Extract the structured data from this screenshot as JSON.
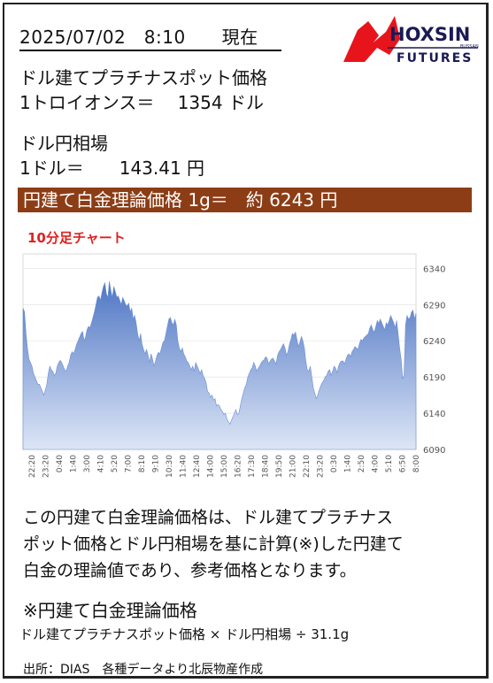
{
  "header": {
    "datetime": "2025/07/02　8:10　　現在"
  },
  "logo": {
    "name": "HOXSIN",
    "sub": "FUTURES",
    "small": "BUSSAN"
  },
  "platinum": {
    "title": "ドル建てプラチナスポット価格",
    "value_line": "1トロイオンス＝　 1354 ドル"
  },
  "fx": {
    "title": "ドル円相場",
    "value_line": "1ドル＝　　143.41 円"
  },
  "theory": {
    "line": "円建て白金理論価格 1g＝　約 6243 円"
  },
  "chart_label": "10分足チャート",
  "chart_data": {
    "type": "area",
    "y_ticks": [
      6090,
      6140,
      6190,
      6240,
      6290,
      6340
    ],
    "ylim": [
      6090,
      6360
    ],
    "x_tick_labels": [
      "22:20",
      "23:20",
      "0:40",
      "1:40",
      "3:00",
      "4:10",
      "5:20",
      "7:00",
      "8:10",
      "9:10",
      "10:30",
      "11:40",
      "12:40",
      "14:00",
      "15:00",
      "16:20",
      "17:30",
      "18:40",
      "19:50",
      "21:00",
      "22:10",
      "23:20",
      "0:30",
      "1:40",
      "2:50",
      "4:00",
      "5:10",
      "6:50",
      "8:00"
    ],
    "values": [
      6285,
      6280,
      6250,
      6230,
      6215,
      6210,
      6205,
      6195,
      6190,
      6185,
      6180,
      6180,
      6175,
      6170,
      6165,
      6172,
      6180,
      6195,
      6205,
      6200,
      6198,
      6192,
      6195,
      6205,
      6210,
      6213,
      6210,
      6205,
      6200,
      6198,
      6205,
      6210,
      6220,
      6225,
      6222,
      6228,
      6235,
      6240,
      6245,
      6250,
      6253,
      6240,
      6245,
      6255,
      6260,
      6258,
      6265,
      6272,
      6280,
      6290,
      6300,
      6302,
      6296,
      6306,
      6315,
      6320,
      6305,
      6300,
      6322,
      6310,
      6300,
      6315,
      6308,
      6300,
      6302,
      6296,
      6290,
      6300,
      6295,
      6290,
      6288,
      6292,
      6280,
      6285,
      6270,
      6275,
      6265,
      6250,
      6240,
      6250,
      6235,
      6228,
      6222,
      6228,
      6220,
      6210,
      6222,
      6215,
      6205,
      6212,
      6220,
      6224,
      6222,
      6230,
      6238,
      6240,
      6250,
      6260,
      6270,
      6272,
      6265,
      6262,
      6270,
      6262,
      6240,
      6230,
      6225,
      6230,
      6222,
      6218,
      6212,
      6210,
      6205,
      6200,
      6205,
      6198,
      6210,
      6205,
      6200,
      6195,
      6200,
      6192,
      6188,
      6182,
      6170,
      6168,
      6162,
      6165,
      6158,
      6160,
      6150,
      6152,
      6150,
      6145,
      6142,
      6138,
      6140,
      6132,
      6128,
      6125,
      6130,
      6135,
      6140,
      6145,
      6138,
      6140,
      6150,
      6160,
      6168,
      6175,
      6180,
      6190,
      6195,
      6200,
      6203,
      6210,
      6205,
      6198,
      6202,
      6205,
      6210,
      6212,
      6214,
      6218,
      6216,
      6208,
      6212,
      6215,
      6216,
      6212,
      6208,
      6220,
      6225,
      6228,
      6232,
      6236,
      6230,
      6220,
      6225,
      6235,
      6242,
      6250,
      6248,
      6252,
      6242,
      6232,
      6238,
      6246,
      6240,
      6230,
      6212,
      6200,
      6198,
      6205,
      6190,
      6175,
      6168,
      6160,
      6165,
      6172,
      6178,
      6182,
      6185,
      6190,
      6192,
      6198,
      6200,
      6192,
      6198,
      6205,
      6202,
      6196,
      6205,
      6210,
      6212,
      6212,
      6208,
      6215,
      6220,
      6222,
      6218,
      6225,
      6228,
      6232,
      6230,
      6228,
      6236,
      6242,
      6240,
      6244,
      6246,
      6248,
      6250,
      6258,
      6262,
      6255,
      6252,
      6260,
      6268,
      6264,
      6270,
      6265,
      6260,
      6255,
      6265,
      6262,
      6268,
      6275,
      6270,
      6265,
      6258,
      6268,
      6250,
      6230,
      6215,
      6188,
      6192,
      6262,
      6275,
      6270,
      6272,
      6280,
      6282,
      6270,
      6278
    ]
  },
  "description": {
    "line1": "この円建て白金理論価格は、ドル建てプラチナス",
    "line2": "ポット価格とドル円相場を基に計算(※)した円建て",
    "line3": "白金の理論値であり、参考価格となります。"
  },
  "formula": {
    "title": "※円建て白金理論価格",
    "expr": "ドル建てプラチナスポット価格 × ドル円相場 ÷ 31.1g"
  },
  "source": "出所：DIAS　各種データより北辰物産作成",
  "colors": {
    "band": "#8c3d16",
    "area_top": "#4f76c4",
    "area_bottom": "#dde6f6",
    "chart_label": "#e02020"
  }
}
